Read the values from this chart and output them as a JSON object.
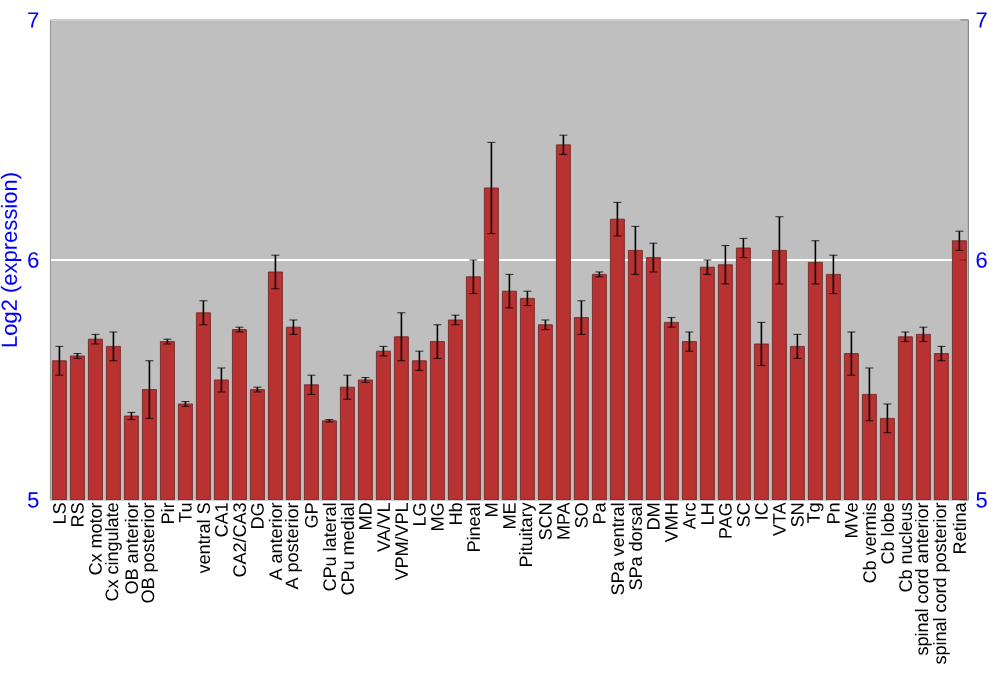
{
  "chart_data": {
    "type": "bar",
    "ylabel": "Log2 (expression)",
    "categories": [
      "LS",
      "RS",
      "Cx motor",
      "Cx cingulate",
      "OB anterior",
      "OB posterior",
      "Pir",
      "Tu",
      "ventral S",
      "CA1",
      "CA2/CA3",
      "DG",
      "A anterior",
      "A posterior",
      "GP",
      "CPu lateral",
      "CPu medial",
      "MD",
      "VA/VL",
      "VPM/VPL",
      "LG",
      "MG",
      "Hb",
      "Pineal",
      "M",
      "ME",
      "Pituitary",
      "SCN",
      "MPA",
      "SO",
      "Pa",
      "SPa ventral",
      "SPa dorsal",
      "DM",
      "VMH",
      "Arc",
      "LH",
      "PAG",
      "SC",
      "IC",
      "VTA",
      "SN",
      "Tg",
      "Pn",
      "MVe",
      "Cb vermis",
      "Cb lobe",
      "Cb nucleus",
      "spinal cord anterior",
      "spinal cord posterior",
      "Retina"
    ],
    "values": [
      5.58,
      5.6,
      5.67,
      5.64,
      5.35,
      5.46,
      5.66,
      5.4,
      5.78,
      5.5,
      5.71,
      5.46,
      5.95,
      5.72,
      5.48,
      5.33,
      5.47,
      5.5,
      5.62,
      5.68,
      5.58,
      5.66,
      5.75,
      5.93,
      6.3,
      5.87,
      5.84,
      5.73,
      6.48,
      5.76,
      5.94,
      6.17,
      6.04,
      6.01,
      5.74,
      5.66,
      5.97,
      5.98,
      6.05,
      5.65,
      6.04,
      5.64,
      5.99,
      5.94,
      5.61,
      5.44,
      5.34,
      5.68,
      5.69,
      5.61,
      6.08
    ],
    "errors": [
      0.06,
      0.01,
      0.02,
      0.06,
      0.015,
      0.12,
      0.01,
      0.01,
      0.05,
      0.05,
      0.01,
      0.01,
      0.07,
      0.03,
      0.04,
      0.005,
      0.05,
      0.01,
      0.02,
      0.1,
      0.04,
      0.07,
      0.02,
      0.07,
      0.19,
      0.07,
      0.03,
      0.02,
      0.04,
      0.07,
      0.01,
      0.07,
      0.1,
      0.06,
      0.02,
      0.04,
      0.03,
      0.08,
      0.04,
      0.09,
      0.14,
      0.05,
      0.09,
      0.08,
      0.09,
      0.11,
      0.06,
      0.02,
      0.03,
      0.03,
      0.04
    ],
    "color": "#b83232",
    "ylim": [
      5,
      7
    ],
    "yticks": [
      5,
      6,
      7
    ],
    "y2lim": [
      5,
      7
    ],
    "y2ticks": [
      5,
      6,
      7
    ],
    "grid": "y"
  }
}
